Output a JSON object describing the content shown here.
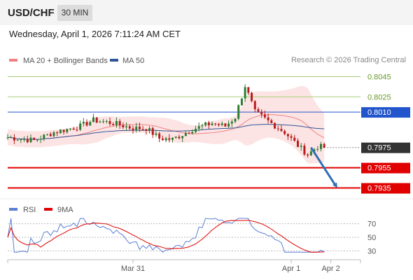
{
  "header": {
    "symbol": "USD/CHF",
    "timeframe": "30 MIN"
  },
  "datetime": "Wednesday, April 1, 2026 7:11:24 AM CET",
  "legend": {
    "ma20": {
      "label": "MA 20 + Bollinger Bands",
      "color": "#f08080"
    },
    "ma50": {
      "label": "MA 50",
      "color": "#2f5597"
    },
    "rsi": {
      "label": "RSI",
      "color": "#5b7fd4"
    },
    "ma9": {
      "label": "9MA",
      "color": "#e00000"
    }
  },
  "copyright": "Research © 2026 Trading Central",
  "colors": {
    "up": "#2e7d32",
    "down": "#b71c1c",
    "accent_blue": "#2255cc",
    "support_red": "#e00000",
    "resistance_green": "#a8cc7a",
    "current": "#333333"
  },
  "chart_data": [
    {
      "type": "candlestick",
      "ylim": [
        0.7925,
        0.8055
      ],
      "xlim": [
        0,
        107
      ],
      "x_ticks": [
        {
          "label": "Mar 31",
          "x": 38
        },
        {
          "label": "Apr 1",
          "x": 86
        },
        {
          "label": "Apr 2",
          "x": 98
        }
      ],
      "levels": [
        {
          "label": "0.8045",
          "value": 0.8045,
          "kind": "resistance"
        },
        {
          "label": "0.8025",
          "value": 0.8025,
          "kind": "resistance"
        },
        {
          "label": "0.8010",
          "value": 0.801,
          "kind": "pivot"
        },
        {
          "label": "0.7975",
          "value": 0.7975,
          "kind": "current"
        },
        {
          "label": "0.7955",
          "value": 0.7955,
          "kind": "support"
        },
        {
          "label": "0.7935",
          "value": 0.7935,
          "kind": "support"
        }
      ],
      "arrow": {
        "from": [
          92,
          0.7975
        ],
        "to": [
          100,
          0.7935
        ]
      }
    },
    {
      "type": "line",
      "name": "RSI",
      "ylim": [
        20,
        80
      ],
      "y_ticks": [
        70,
        50,
        30
      ]
    }
  ]
}
